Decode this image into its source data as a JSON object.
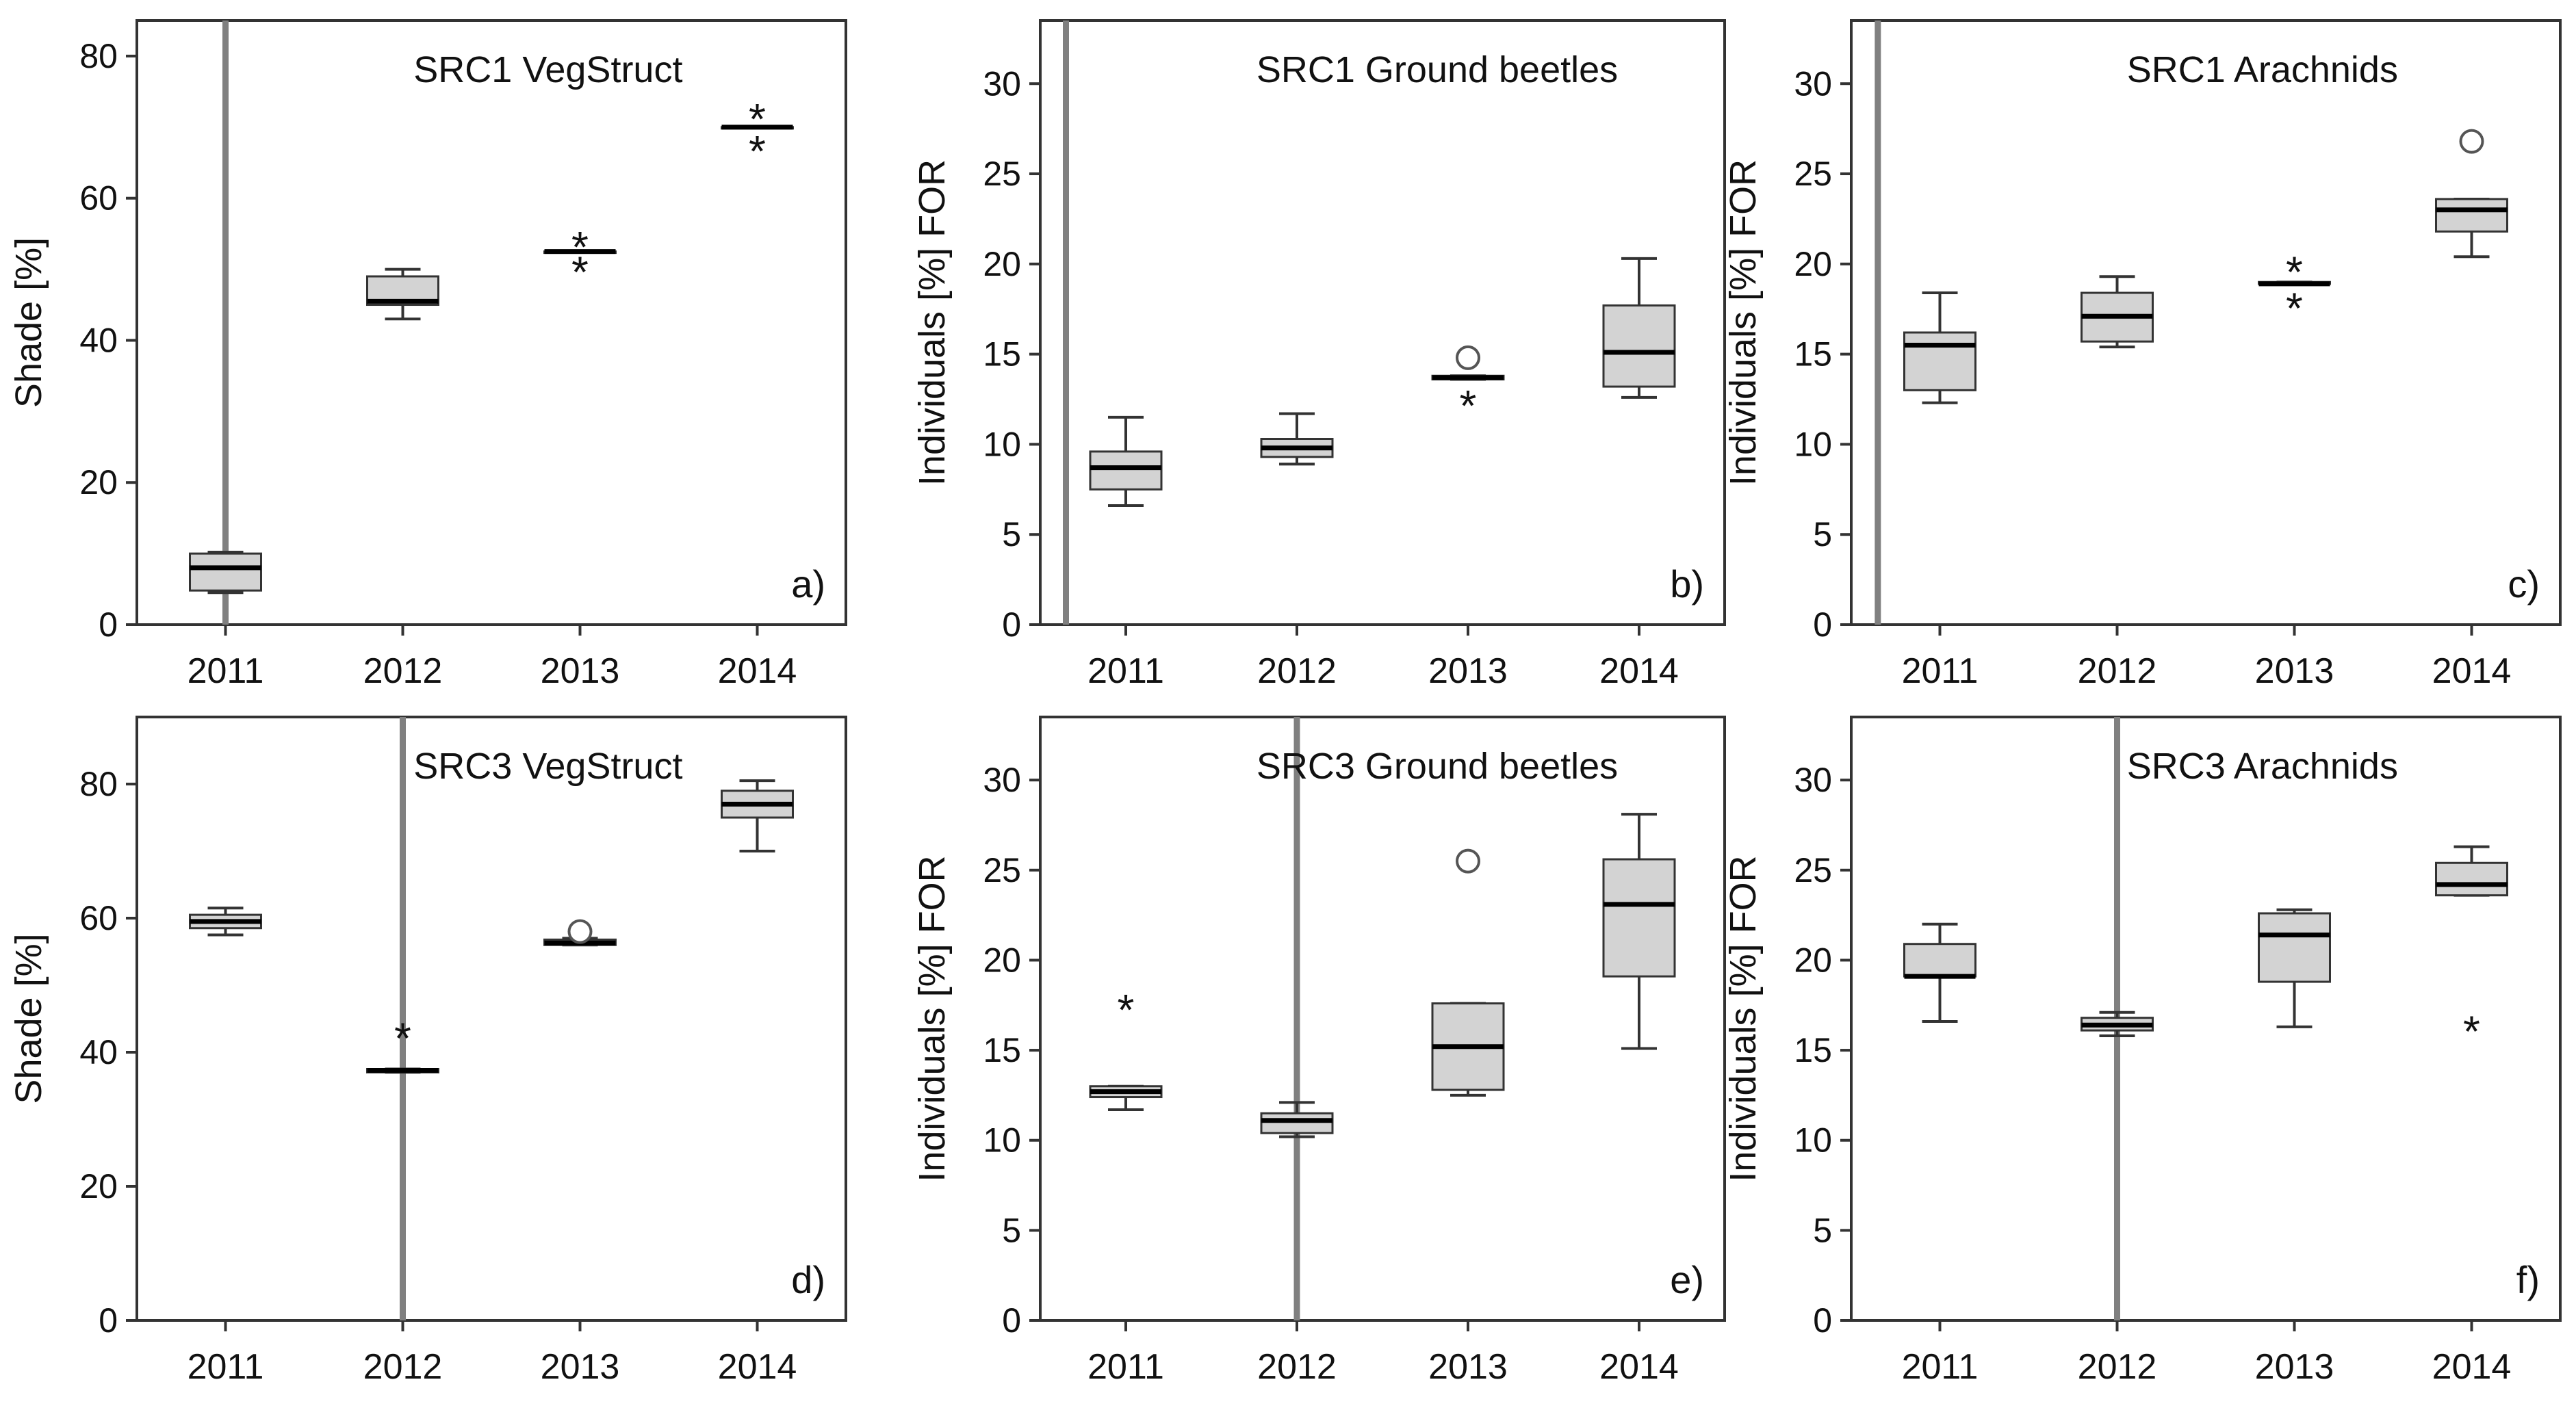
{
  "figure": {
    "description_colors": {
      "box_fill": "#d3d3d3",
      "stroke": "#333333",
      "divider": "#808080",
      "outlier": "#555555"
    }
  },
  "chart_data": [
    {
      "type": "box",
      "panel": "a)",
      "title": "SRC1 VegStruct",
      "ylabel": "Shade [%]",
      "xlabel": "",
      "categories": [
        "2011",
        "2012",
        "2013",
        "2014"
      ],
      "ylim": [
        0,
        85
      ],
      "yticks": [
        0,
        20,
        40,
        60,
        80
      ],
      "divider_after_x": 0.5,
      "boxes": [
        {
          "min": 4.5,
          "q1": 4.8,
          "median": 8,
          "q3": 10,
          "max": 10.2,
          "outliers": []
        },
        {
          "min": 43,
          "q1": 45,
          "median": 45.5,
          "q3": 49,
          "max": 50,
          "outliers": []
        },
        {
          "min": 52.5,
          "q1": 52.5,
          "median": 52.5,
          "q3": 52.5,
          "max": 52.5,
          "outliers": [
            {
              "v": 53.5,
              "m": "star"
            },
            {
              "v": 50,
              "m": "star"
            }
          ]
        },
        {
          "min": 70,
          "q1": 70,
          "median": 70,
          "q3": 70,
          "max": 70,
          "outliers": [
            {
              "v": 71.5,
              "m": "star"
            },
            {
              "v": 67,
              "m": "star"
            }
          ]
        }
      ]
    },
    {
      "type": "box",
      "panel": "b)",
      "title": "SRC1 Ground beetles",
      "ylabel": "Individuals [%] FOR",
      "xlabel": "",
      "categories": [
        "2011",
        "2012",
        "2013",
        "2014"
      ],
      "ylim": [
        0,
        33.5
      ],
      "yticks": [
        0,
        5,
        10,
        15,
        20,
        25,
        30
      ],
      "divider_after_x": 0.15,
      "boxes": [
        {
          "min": 6.6,
          "q1": 7.5,
          "median": 8.7,
          "q3": 9.6,
          "max": 11.5,
          "outliers": []
        },
        {
          "min": 8.9,
          "q1": 9.3,
          "median": 9.8,
          "q3": 10.3,
          "max": 11.7,
          "outliers": []
        },
        {
          "min": 13.6,
          "q1": 13.6,
          "median": 13.7,
          "q3": 13.8,
          "max": 13.8,
          "outliers": [
            {
              "v": 14.8,
              "m": "circle"
            },
            {
              "v": 12.3,
              "m": "star"
            }
          ]
        },
        {
          "min": 12.6,
          "q1": 13.2,
          "median": 15.1,
          "q3": 17.7,
          "max": 20.3,
          "outliers": []
        }
      ]
    },
    {
      "type": "box",
      "panel": "c)",
      "title": "SRC1 Arachnids",
      "ylabel": "Individuals [%] FOR",
      "xlabel": "",
      "categories": [
        "2011",
        "2012",
        "2013",
        "2014"
      ],
      "ylim": [
        0,
        33.5
      ],
      "yticks": [
        0,
        5,
        10,
        15,
        20,
        25,
        30
      ],
      "divider_after_x": 0.15,
      "boxes": [
        {
          "min": 12.3,
          "q1": 13.0,
          "median": 15.5,
          "q3": 16.2,
          "max": 18.4,
          "outliers": []
        },
        {
          "min": 15.4,
          "q1": 15.7,
          "median": 17.1,
          "q3": 18.4,
          "max": 19.3,
          "outliers": []
        },
        {
          "min": 18.9,
          "q1": 18.9,
          "median": 18.9,
          "q3": 19.0,
          "max": 19.0,
          "outliers": [
            {
              "v": 19.7,
              "m": "star"
            },
            {
              "v": 17.7,
              "m": "star"
            }
          ]
        },
        {
          "min": 20.4,
          "q1": 21.8,
          "median": 23.0,
          "q3": 23.6,
          "max": 23.6,
          "outliers": [
            {
              "v": 26.8,
              "m": "circle"
            }
          ]
        }
      ]
    },
    {
      "type": "box",
      "panel": "d)",
      "title": "SRC3 VegStruct",
      "ylabel": "Shade [%]",
      "xlabel": "",
      "categories": [
        "2011",
        "2012",
        "2013",
        "2014"
      ],
      "ylim": [
        0,
        90
      ],
      "yticks": [
        0,
        20,
        40,
        60,
        80
      ],
      "divider_after_x": 1.5,
      "boxes": [
        {
          "min": 57.5,
          "q1": 58.5,
          "median": 59.5,
          "q3": 60.5,
          "max": 61.5,
          "outliers": []
        },
        {
          "min": 37,
          "q1": 37,
          "median": 37.3,
          "q3": 37.5,
          "max": 37.5,
          "outliers": [
            {
              "v": 42.5,
              "m": "star"
            }
          ]
        },
        {
          "min": 56,
          "q1": 56,
          "median": 56.3,
          "q3": 56.8,
          "max": 57,
          "outliers": [
            {
              "v": 58,
              "m": "circle"
            }
          ]
        },
        {
          "min": 70,
          "q1": 75,
          "median": 77,
          "q3": 79,
          "max": 80.5,
          "outliers": []
        }
      ]
    },
    {
      "type": "box",
      "panel": "e)",
      "title": "SRC3 Ground beetles",
      "ylabel": "Individuals [%] FOR",
      "xlabel": "",
      "categories": [
        "2011",
        "2012",
        "2013",
        "2014"
      ],
      "ylim": [
        0,
        33.5
      ],
      "yticks": [
        0,
        5,
        10,
        15,
        20,
        25,
        30
      ],
      "divider_after_x": 1.5,
      "boxes": [
        {
          "min": 11.7,
          "q1": 12.4,
          "median": 12.7,
          "q3": 13.0,
          "max": 13.0,
          "outliers": [
            {
              "v": 17.4,
              "m": "star"
            }
          ]
        },
        {
          "min": 10.2,
          "q1": 10.4,
          "median": 11.1,
          "q3": 11.5,
          "max": 12.1,
          "outliers": []
        },
        {
          "min": 12.5,
          "q1": 12.8,
          "median": 15.2,
          "q3": 17.6,
          "max": 17.6,
          "outliers": [
            {
              "v": 25.5,
              "m": "circle"
            }
          ]
        },
        {
          "min": 15.1,
          "q1": 19.1,
          "median": 23.1,
          "q3": 25.6,
          "max": 28.1,
          "outliers": []
        }
      ]
    },
    {
      "type": "box",
      "panel": "f)",
      "title": "SRC3 Arachnids",
      "ylabel": "Individuals [%] FOR",
      "xlabel": "",
      "categories": [
        "2011",
        "2012",
        "2013",
        "2014"
      ],
      "ylim": [
        0,
        33.5
      ],
      "yticks": [
        0,
        5,
        10,
        15,
        20,
        25,
        30
      ],
      "divider_after_x": 1.5,
      "boxes": [
        {
          "min": 16.6,
          "q1": 19.1,
          "median": 19.1,
          "q3": 20.9,
          "max": 22.0,
          "outliers": []
        },
        {
          "min": 15.8,
          "q1": 16.1,
          "median": 16.4,
          "q3": 16.8,
          "max": 17.1,
          "outliers": []
        },
        {
          "min": 16.3,
          "q1": 18.8,
          "median": 21.4,
          "q3": 22.6,
          "max": 22.8,
          "outliers": []
        },
        {
          "min": 23.6,
          "q1": 23.6,
          "median": 24.2,
          "q3": 25.4,
          "max": 26.3,
          "outliers": [
            {
              "v": 16.2,
              "m": "star"
            }
          ]
        }
      ]
    }
  ]
}
